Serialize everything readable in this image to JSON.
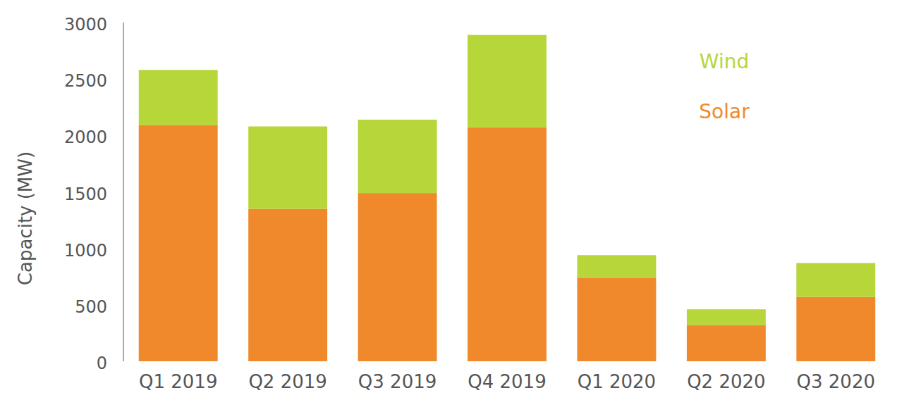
{
  "chart_data": {
    "type": "bar",
    "stacked": true,
    "legend": "top-right",
    "y_label": "Capacity  (MW)",
    "categories": [
      "Q1 2019",
      "Q2 2019",
      "Q3 2019",
      "Q4 2019",
      "Q1 2020",
      "Q2 2020",
      "Q3 2020"
    ],
    "series": [
      {
        "name": "Solar",
        "color": "#f0892c",
        "values": [
          2090,
          1350,
          1490,
          2070,
          740,
          320,
          570
        ]
      },
      {
        "name": "Wind",
        "color": "#b6d63a",
        "values": [
          490,
          730,
          650,
          820,
          200,
          140,
          300
        ]
      }
    ],
    "ylim": [
      0,
      3000
    ],
    "yticks": [
      0,
      500,
      1000,
      1500,
      2000,
      2500,
      3000
    ],
    "grid": false
  }
}
